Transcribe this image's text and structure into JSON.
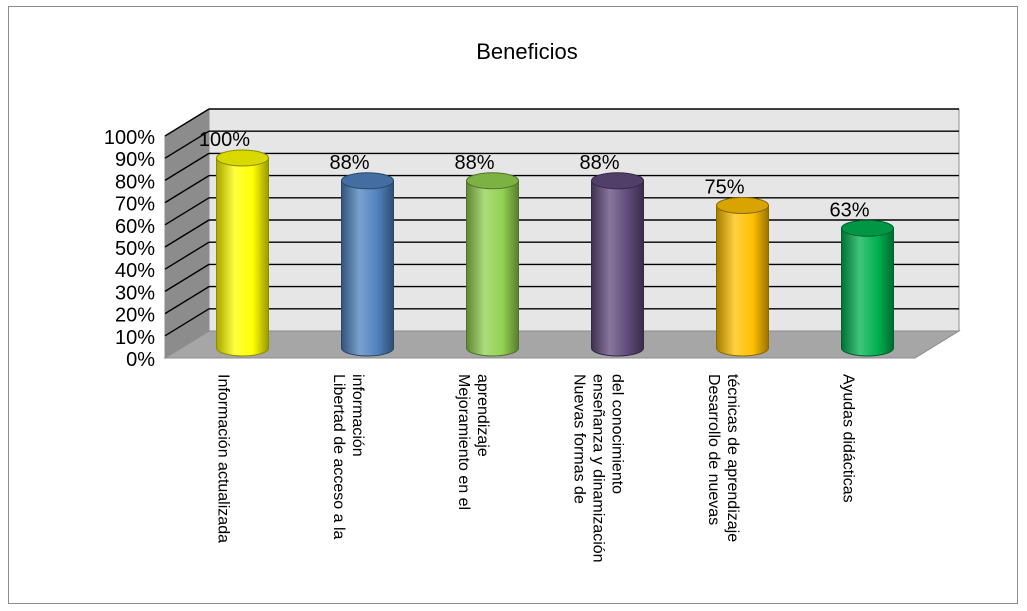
{
  "chart_data": {
    "type": "bar",
    "title": "Beneficios",
    "xlabel": "",
    "ylabel": "",
    "ylim": [
      0,
      100
    ],
    "yticks": [
      "0%",
      "10%",
      "20%",
      "30%",
      "40%",
      "50%",
      "60%",
      "70%",
      "80%",
      "90%",
      "100%"
    ],
    "grid": true,
    "legend": "none",
    "categories": [
      [
        "Información actualizada"
      ],
      [
        "Libertad de acceso a la",
        "información"
      ],
      [
        "Mejoramiento en  el",
        "aprendizaje"
      ],
      [
        "Nuevas formas de",
        "enseñanza y dinamización",
        "del conocimiento"
      ],
      [
        "Desarrollo de nuevas",
        "técnicas de aprendizaje"
      ],
      [
        "Ayudas didácticas"
      ]
    ],
    "values": [
      100,
      88,
      88,
      88,
      75,
      63
    ],
    "data_labels": [
      "100%",
      "88%",
      "88%",
      "88%",
      "75%",
      "63%"
    ],
    "colors": [
      "#ffff00",
      "#4f81bd",
      "#92d050",
      "#604a7b",
      "#ffc000",
      "#00b050"
    ]
  }
}
